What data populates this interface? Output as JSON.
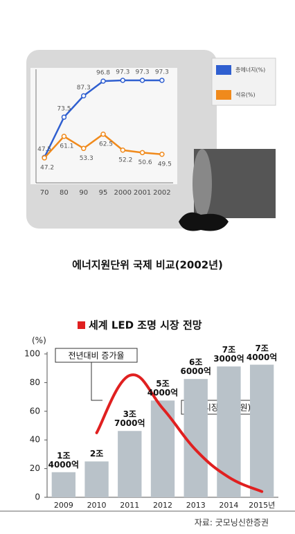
{
  "chart_data": [
    {
      "type": "line",
      "title": "에너지원단위 국제 비교(2002년)",
      "categories": [
        "70",
        "80",
        "90",
        "95",
        "2000",
        "2001",
        "2002"
      ],
      "series": [
        {
          "name": "총에너지(%)",
          "color": "#2f5fd0",
          "values": [
            47.5,
            73.5,
            87.3,
            96.8,
            97.3,
            97.3,
            97.3
          ]
        },
        {
          "name": "석유(%)",
          "color": "#f08a1c",
          "values": [
            47.2,
            61.1,
            53.3,
            62.5,
            52.2,
            50.6,
            49.5
          ]
        }
      ],
      "ylim": [
        40,
        100
      ]
    },
    {
      "type": "bar",
      "title": "세계 LED 조명 시장 전망",
      "ylabel": "(%)",
      "categories": [
        "2009",
        "2010",
        "2011",
        "2012",
        "2013",
        "2014",
        "2015년"
      ],
      "series": [
        {
          "name": "세계시장 규모(원)",
          "color": "#b9c2c9",
          "axis": "y2",
          "values": [
            14000,
            20000,
            37000,
            54000,
            66000,
            73000,
            74000
          ],
          "value_labels": [
            "1조\n4000억",
            "2조",
            "3조\n7000억",
            "5조\n4000억",
            "6조\n6000억",
            "7조\n3000억",
            "7조\n4000억"
          ]
        },
        {
          "name": "전년대비 증가율",
          "type": "line",
          "color": "#e02020",
          "values": [
            null,
            45,
            85,
            62,
            33,
            14,
            4
          ]
        }
      ],
      "ylim": [
        0,
        100
      ],
      "yticks": [
        0,
        20,
        40,
        60,
        80,
        100
      ],
      "y2lim": [
        0,
        80000
      ],
      "source": "자료: 굿모닝신한증권"
    }
  ]
}
